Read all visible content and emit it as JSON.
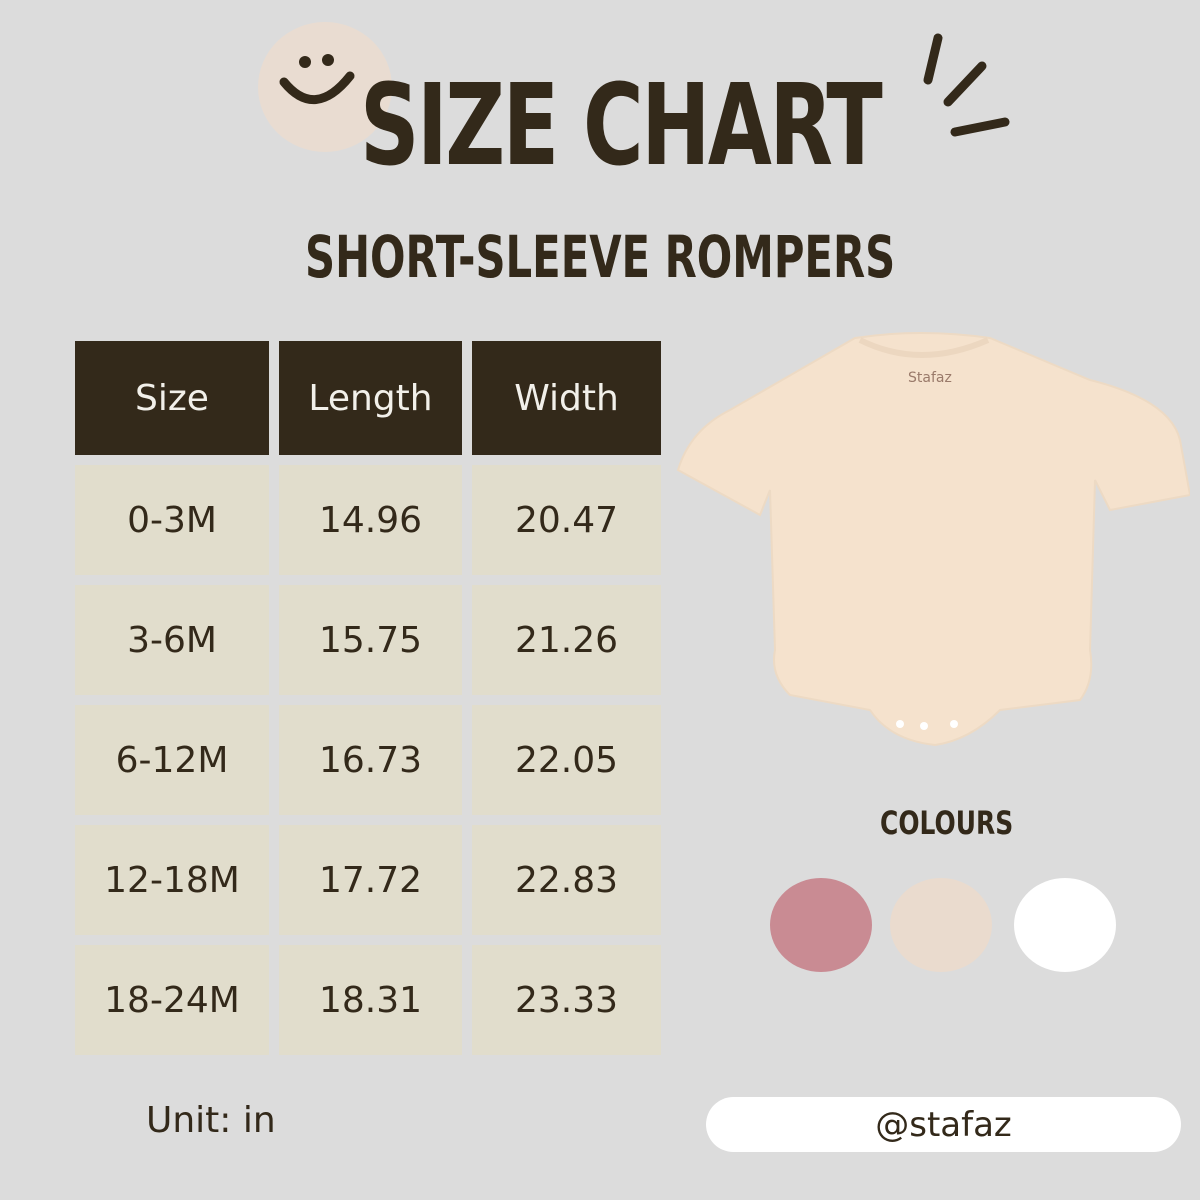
{
  "header": {
    "title": "SIZE CHART",
    "subtitle": "SHORT-SLEEVE ROMPERS"
  },
  "table": {
    "columns": [
      "Size",
      "Length",
      "Width"
    ],
    "rows": [
      [
        "0-3M",
        "14.96",
        "20.47"
      ],
      [
        "3-6M",
        "15.75",
        "21.26"
      ],
      [
        "6-12M",
        "16.73",
        "22.05"
      ],
      [
        "12-18M",
        "17.72",
        "22.83"
      ],
      [
        "18-24M",
        "18.31",
        "23.33"
      ]
    ],
    "header_color": "#33291a",
    "cell_color": "#e1ddcc"
  },
  "product": {
    "label_text": "Stafaz"
  },
  "colours": {
    "label": "COLOURS",
    "swatches": [
      "#c98b93",
      "#eadbce",
      "#ffffff"
    ]
  },
  "footer": {
    "unit": "Unit: in",
    "handle": "@stafaz"
  }
}
